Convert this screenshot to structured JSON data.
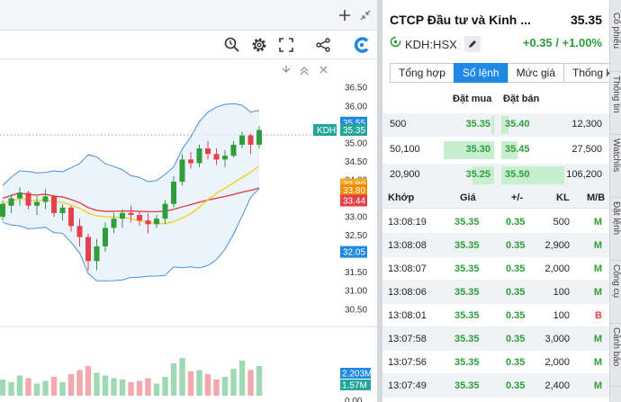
{
  "colors": {
    "up": "#2e9d3a",
    "down": "#e5414b",
    "accent": "#1e88e5",
    "sell": "#e5414b",
    "buy": "#2e9d3a"
  },
  "chart_toolbar": {
    "top_icons": [
      "plus-icon",
      "collapse-arrows-icon"
    ],
    "icons": [
      "magnifier-clock-icon",
      "gear-icon",
      "fullscreen-icon",
      "share-icon",
      "brand-logo-icon"
    ],
    "pane_controls": [
      "chevron-down-icon",
      "double-chevron-up-icon",
      "close-icon"
    ]
  },
  "chart": {
    "price_labels": [
      "36.50",
      "36.00",
      "35.50",
      "35.00",
      "34.50",
      "34.00",
      "33.50",
      "33.00",
      "32.50",
      "32.00",
      "31.50",
      "31.00",
      "30.50"
    ],
    "price_tags": [
      {
        "id": "upper-band",
        "text": "35.55",
        "price": 35.55,
        "color": "#1e88e5"
      },
      {
        "id": "last",
        "text": "35.35",
        "price": 35.35,
        "color": "#26a69a"
      },
      {
        "id": "ma-yellow",
        "text": "33.80",
        "price": 33.88,
        "color": "#f5a623"
      },
      {
        "id": "ma-orange",
        "text": "33.80",
        "price": 33.72,
        "color": "#f08c00"
      },
      {
        "id": "ma-red",
        "text": "33.44",
        "price": 33.44,
        "color": "#e5414b"
      },
      {
        "id": "lower-band",
        "text": "32.05",
        "price": 32.05,
        "color": "#1e88e5"
      }
    ],
    "symbol_tag": "KDH",
    "volume_tags": [
      {
        "id": "volume",
        "text": "2.203M",
        "color": "#1e88e5"
      },
      {
        "id": "volume-ma",
        "text": "1.57M",
        "color": "#26a69a"
      }
    ],
    "bottom_label": "0.00"
  },
  "chart_data": {
    "type": "candlestick",
    "ohlc": [
      [
        33.0,
        33.45,
        32.9,
        33.35
      ],
      [
        33.3,
        33.6,
        33.1,
        33.5
      ],
      [
        33.5,
        33.8,
        33.3,
        33.65
      ],
      [
        33.65,
        33.7,
        33.2,
        33.3
      ],
      [
        33.3,
        33.55,
        33.05,
        33.4
      ],
      [
        33.4,
        33.75,
        33.2,
        33.55
      ],
      [
        33.55,
        33.6,
        33.0,
        33.1
      ],
      [
        33.1,
        33.35,
        32.9,
        33.25
      ],
      [
        33.25,
        33.3,
        32.6,
        32.75
      ],
      [
        32.75,
        32.95,
        32.2,
        32.45
      ],
      [
        32.45,
        32.55,
        31.55,
        31.8
      ],
      [
        31.8,
        32.4,
        31.55,
        32.2
      ],
      [
        32.2,
        32.85,
        32.05,
        32.7
      ],
      [
        32.7,
        33.1,
        32.55,
        32.95
      ],
      [
        32.95,
        33.2,
        32.7,
        33.1
      ],
      [
        33.1,
        33.3,
        32.85,
        33.05
      ],
      [
        33.05,
        33.15,
        32.75,
        32.9
      ],
      [
        32.9,
        33.1,
        32.55,
        32.8
      ],
      [
        32.8,
        33.05,
        32.7,
        32.95
      ],
      [
        32.95,
        33.45,
        32.8,
        33.35
      ],
      [
        33.35,
        34.1,
        33.25,
        33.95
      ],
      [
        33.95,
        34.7,
        33.85,
        34.55
      ],
      [
        34.55,
        34.75,
        34.3,
        34.45
      ],
      [
        34.45,
        34.95,
        34.35,
        34.85
      ],
      [
        34.85,
        35.05,
        34.55,
        34.7
      ],
      [
        34.7,
        34.85,
        34.4,
        34.55
      ],
      [
        34.55,
        34.8,
        34.35,
        34.65
      ],
      [
        34.65,
        35.05,
        34.6,
        34.95
      ],
      [
        34.95,
        35.3,
        34.85,
        35.2
      ],
      [
        35.2,
        35.25,
        34.7,
        34.95
      ],
      [
        34.95,
        35.45,
        34.85,
        35.35
      ]
    ],
    "volume": [
      1.2,
      1.0,
      1.5,
      1.3,
      0.9,
      1.1,
      1.4,
      1.0,
      1.6,
      1.9,
      2.2,
      1.7,
      1.5,
      1.3,
      1.2,
      1.0,
      1.1,
      1.3,
      0.9,
      1.4,
      2.4,
      2.8,
      1.8,
      1.9,
      1.6,
      1.2,
      1.4,
      2.0,
      2.6,
      1.9,
      2.2
    ],
    "ylim": [
      30.3,
      36.7
    ]
  },
  "quote": {
    "company_name": "CTCP Đầu tư và Kinh ...",
    "price": "35.35",
    "ticker": "KDH:HSX",
    "change": "+0.35 / +1.00%",
    "tabs": [
      "Tổng hợp",
      "Sổ lệnh",
      "Mức giá",
      "Thống kê"
    ],
    "active_tab": 1
  },
  "order_book": {
    "bid_header": "Đặt mua",
    "ask_header": "Đặt bán",
    "rows": [
      {
        "bid_vol": "500",
        "bid_px": "35.35",
        "ask_px": "35.40",
        "ask_vol": "12,300",
        "bid_fill": 0.005,
        "ask_fill": 0.12
      },
      {
        "bid_vol": "50,100",
        "bid_px": "35.30",
        "ask_px": "35.45",
        "ask_vol": "27,500",
        "bid_fill": 0.47,
        "ask_fill": 0.26
      },
      {
        "bid_vol": "20,900",
        "bid_px": "35.25",
        "ask_px": "35.50",
        "ask_vol": "106,200",
        "bid_fill": 0.2,
        "ask_fill": 1.0
      }
    ]
  },
  "trades": {
    "headers": [
      "Khớp",
      "Giá",
      "+/-",
      "KL",
      "M/B"
    ],
    "rows": [
      {
        "time": "13:08:19",
        "price": "35.35",
        "change": "0.35",
        "vol": "500",
        "side": "M"
      },
      {
        "time": "13:08:08",
        "price": "35.35",
        "change": "0.35",
        "vol": "2,900",
        "side": "M"
      },
      {
        "time": "13:08:07",
        "price": "35.35",
        "change": "0.35",
        "vol": "2,000",
        "side": "M"
      },
      {
        "time": "13:08:06",
        "price": "35.35",
        "change": "0.35",
        "vol": "100",
        "side": "M"
      },
      {
        "time": "13:08:01",
        "price": "35.35",
        "change": "0.35",
        "vol": "100",
        "side": "B"
      },
      {
        "time": "13:07:58",
        "price": "35.35",
        "change": "0.35",
        "vol": "3,000",
        "side": "M"
      },
      {
        "time": "13:07:56",
        "price": "35.35",
        "change": "0.35",
        "vol": "2,000",
        "side": "M"
      },
      {
        "time": "13:07:49",
        "price": "35.35",
        "change": "0.35",
        "vol": "2,400",
        "side": "M"
      }
    ]
  },
  "side_tabs": [
    "Cổ phiếu",
    "Thông tin",
    "Watchlis",
    "Đặt lệnh",
    "Công cụ",
    "Cảnh báo"
  ]
}
